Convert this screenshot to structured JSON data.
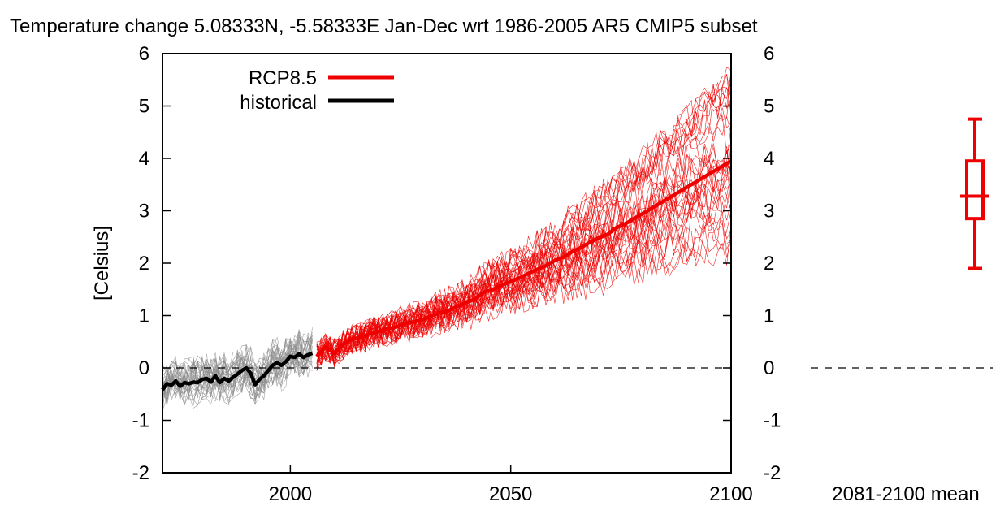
{
  "chart_data": {
    "type": "line",
    "title": "Temperature change 5.08333N, -5.58333E Jan-Dec wrt 1986-2005 AR5 CMIP5 subset",
    "ylabel": "[Celsius]",
    "xlabel": "",
    "xlim": [
      1971,
      2100
    ],
    "ylim": [
      -2,
      6
    ],
    "x_ticks": [
      2000,
      2050,
      2100
    ],
    "y_ticks": [
      -2,
      -1,
      0,
      1,
      2,
      3,
      4,
      5,
      6
    ],
    "zero_line": true,
    "grid": false,
    "legend": {
      "position": "top-left",
      "entries": [
        {
          "label": "RCP8.5",
          "color": "#ee0000"
        },
        {
          "label": "historical",
          "color": "#000000"
        }
      ]
    },
    "colors": {
      "rcp85": "#ee0000",
      "historical": "#000000",
      "ensemble_historical": "#8c8c8c",
      "ensemble_rcp85": "#ee0000"
    },
    "series": [
      {
        "name": "historical",
        "x": [
          1971,
          1972,
          1973,
          1974,
          1975,
          1976,
          1977,
          1978,
          1979,
          1980,
          1981,
          1982,
          1983,
          1984,
          1985,
          1986,
          1987,
          1988,
          1989,
          1990,
          1991,
          1992,
          1993,
          1994,
          1995,
          1996,
          1997,
          1998,
          1999,
          2000,
          2001,
          2002,
          2003,
          2004,
          2005
        ],
        "values": [
          -0.42,
          -0.3,
          -0.33,
          -0.25,
          -0.35,
          -0.28,
          -0.3,
          -0.27,
          -0.28,
          -0.22,
          -0.2,
          -0.27,
          -0.15,
          -0.28,
          -0.2,
          -0.25,
          -0.18,
          -0.12,
          -0.05,
          0.0,
          -0.1,
          -0.32,
          -0.22,
          -0.15,
          -0.05,
          0.05,
          0.1,
          0.05,
          0.12,
          0.22,
          0.2,
          0.27,
          0.2,
          0.25,
          0.28
        ]
      },
      {
        "name": "RCP8.5",
        "x": [
          2006,
          2008,
          2010,
          2012,
          2014,
          2016,
          2018,
          2020,
          2022,
          2024,
          2026,
          2028,
          2030,
          2032,
          2034,
          2036,
          2038,
          2040,
          2042,
          2044,
          2046,
          2048,
          2050,
          2052,
          2054,
          2056,
          2058,
          2060,
          2062,
          2064,
          2066,
          2068,
          2070,
          2072,
          2074,
          2076,
          2078,
          2080,
          2082,
          2084,
          2086,
          2088,
          2090,
          2092,
          2094,
          2096,
          2098,
          2100
        ],
        "values": [
          0.22,
          0.4,
          0.28,
          0.45,
          0.55,
          0.58,
          0.65,
          0.7,
          0.75,
          0.78,
          0.85,
          0.88,
          0.92,
          1.0,
          1.05,
          1.1,
          1.18,
          1.25,
          1.32,
          1.45,
          1.5,
          1.58,
          1.65,
          1.72,
          1.8,
          1.88,
          1.95,
          2.05,
          2.12,
          2.22,
          2.3,
          2.4,
          2.48,
          2.55,
          2.68,
          2.75,
          2.85,
          2.95,
          3.05,
          3.15,
          3.25,
          3.35,
          3.45,
          3.55,
          3.65,
          3.75,
          3.85,
          3.95
        ]
      }
    ],
    "boxplot": {
      "label": "2081-2100 mean",
      "min": 1.9,
      "q1": 2.85,
      "median": 3.28,
      "q3": 3.95,
      "max": 4.75,
      "color": "#ee0000"
    }
  }
}
